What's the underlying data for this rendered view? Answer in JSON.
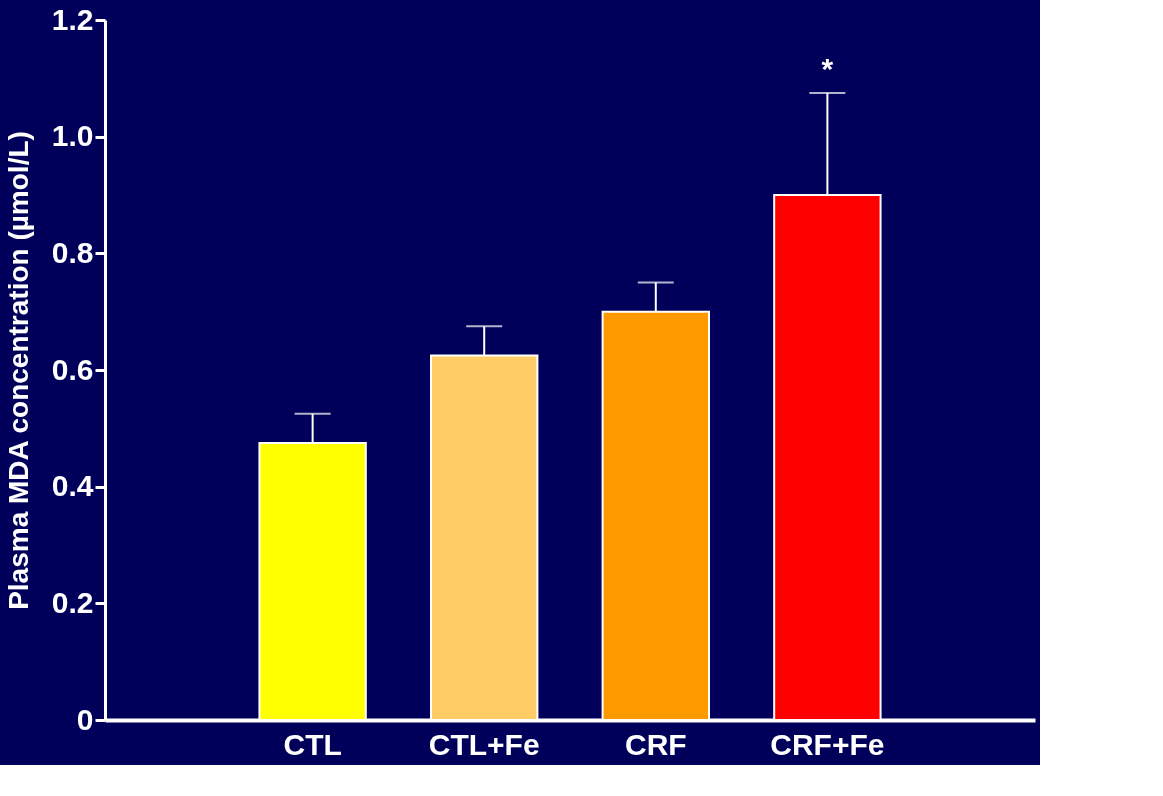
{
  "chart_data": {
    "type": "bar",
    "ylabel": "Plasma MDA  concentration (µmol/L)",
    "categories": [
      "CTL",
      "CTL+Fe",
      "CRF",
      "CRF+Fe"
    ],
    "values": [
      0.475,
      0.625,
      0.7,
      0.9
    ],
    "colors": [
      "#ffff00",
      "#ffcc66",
      "#ff9900",
      "#ff0000"
    ],
    "errors": [
      [
        0.475,
        0.525
      ],
      [
        0.625,
        0.675
      ],
      [
        0.7,
        0.75
      ],
      [
        0.9,
        1.075
      ]
    ],
    "ylim": [
      0,
      1.2
    ],
    "yticks": [
      {
        "value": 0,
        "label": "0"
      },
      0.2,
      0.4,
      0.6,
      0.8,
      {
        "value": 1.0,
        "label": "1.0"
      },
      1.2
    ],
    "annotations": [
      "*"
    ],
    "grid": false
  }
}
